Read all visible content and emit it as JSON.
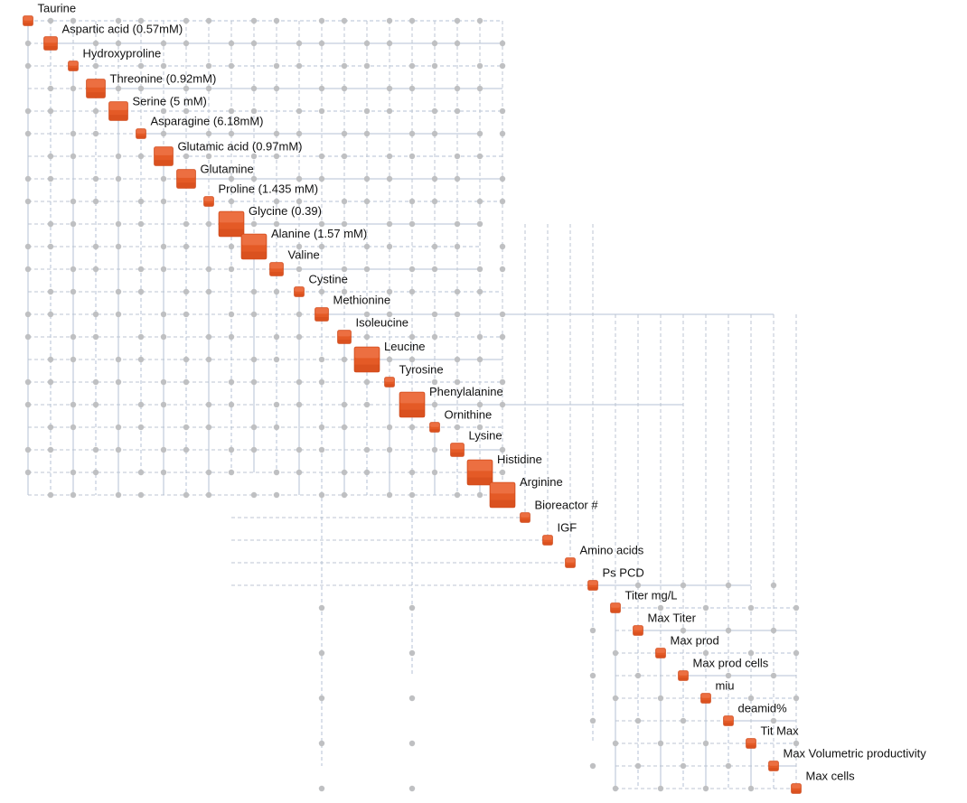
{
  "diagram": {
    "type": "network-adjacency-matrix",
    "colors": {
      "node": "#e45a26",
      "node_top": "#ee7448",
      "node_shade": "#c94113",
      "edge_solid": "#b5c2d4",
      "edge_dashed": "#bcc6d3",
      "connector": "#bfc0c2",
      "label": "#111111"
    },
    "nodes": [
      {
        "label": "Taurine",
        "size": "small"
      },
      {
        "label": "Aspartic acid (0.57mM)",
        "size": "medium"
      },
      {
        "label": "Hydroxyproline",
        "size": "small"
      },
      {
        "label": "Threonine (0.92mM)",
        "size": "large"
      },
      {
        "label": "Serine (5 mM)",
        "size": "large"
      },
      {
        "label": "Asparagine (6.18mM)",
        "size": "small"
      },
      {
        "label": "Glutamic acid (0.97mM)",
        "size": "large"
      },
      {
        "label": "Glutamine",
        "size": "large"
      },
      {
        "label": "Proline (1.435 mM)",
        "size": "small"
      },
      {
        "label": "Glycine (0.39)",
        "size": "xlarge"
      },
      {
        "label": "Alanine (1.57 mM)",
        "size": "xlarge"
      },
      {
        "label": "Valine",
        "size": "medium"
      },
      {
        "label": "Cystine",
        "size": "small"
      },
      {
        "label": "Methionine",
        "size": "medium"
      },
      {
        "label": "Isoleucine",
        "size": "medium"
      },
      {
        "label": "Leucine",
        "size": "xlarge"
      },
      {
        "label": "Tyrosine",
        "size": "small"
      },
      {
        "label": "Phenylalanine",
        "size": "xlarge"
      },
      {
        "label": "Ornithine",
        "size": "small"
      },
      {
        "label": "Lysine",
        "size": "medium"
      },
      {
        "label": "Histidine",
        "size": "xlarge"
      },
      {
        "label": "Arginine",
        "size": "xlarge"
      },
      {
        "label": "Bioreactor #",
        "size": "small"
      },
      {
        "label": "IGF",
        "size": "small"
      },
      {
        "label": "Amino acids",
        "size": "small"
      },
      {
        "label": "Ps PCD",
        "size": "small"
      },
      {
        "label": "Titer mg/L",
        "size": "small"
      },
      {
        "label": "Max Titer",
        "size": "small"
      },
      {
        "label": "Max prod",
        "size": "small"
      },
      {
        "label": "Max prod cells",
        "size": "small"
      },
      {
        "label": "miu",
        "size": "small"
      },
      {
        "label": "deamid%",
        "size": "small"
      },
      {
        "label": "Tit Max",
        "size": "small"
      },
      {
        "label": "Max Volumetric productivity",
        "size": "small"
      },
      {
        "label": "Max cells",
        "size": "small"
      }
    ]
  }
}
